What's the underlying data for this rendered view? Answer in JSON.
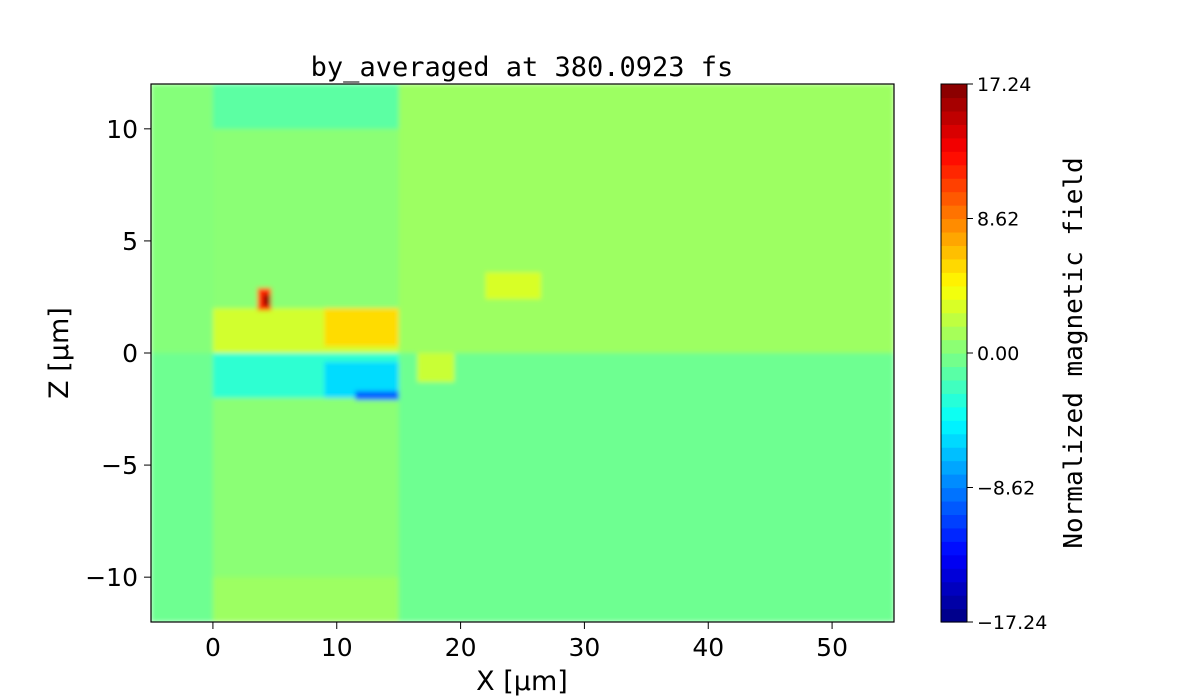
{
  "chart_data": {
    "type": "heatmap",
    "title": "by_averaged at 380.0923 fs",
    "xlabel": "X [μm]",
    "ylabel": "Z [μm]",
    "xlim": [
      -5,
      55
    ],
    "ylim": [
      -12,
      12
    ],
    "xticks": [
      0,
      10,
      20,
      30,
      40,
      50
    ],
    "yticks": [
      -10,
      -5,
      0,
      5,
      10
    ],
    "ytick_labels": [
      "−10",
      "−5",
      "0",
      "5",
      "10"
    ],
    "colormap": "jet",
    "colorbar": {
      "label": "Normalized magnetic field",
      "range": [
        -17.24,
        17.24
      ],
      "ticks": [
        17.24,
        8.62,
        0.0,
        -8.62,
        -17.24
      ],
      "tick_labels": [
        "17.24",
        "8.62",
        "0.00",
        "−8.62",
        "−17.24"
      ]
    },
    "regions": [
      {
        "x": [
          -5,
          55
        ],
        "z": [
          -12,
          12
        ],
        "value": -0.6
      },
      {
        "x": [
          15,
          55
        ],
        "z": [
          0,
          12
        ],
        "value": 1.0
      },
      {
        "x": [
          -5,
          0
        ],
        "z": [
          0,
          12
        ],
        "value": 0.2
      },
      {
        "x": [
          0,
          15
        ],
        "z": [
          2,
          10
        ],
        "value": 0.4
      },
      {
        "x": [
          0,
          15
        ],
        "z": [
          -10,
          -2
        ],
        "value": 0.4
      },
      {
        "x": [
          0,
          15
        ],
        "z": [
          10,
          12
        ],
        "value": -1.2
      },
      {
        "x": [
          0,
          15
        ],
        "z": [
          -12,
          -10
        ],
        "value": 1.0
      },
      {
        "x": [
          0,
          15
        ],
        "z": [
          0,
          2
        ],
        "value": 2.8
      },
      {
        "x": [
          9,
          15
        ],
        "z": [
          0.3,
          2
        ],
        "value": 5.5
      },
      {
        "x": [
          0,
          15
        ],
        "z": [
          -2,
          0
        ],
        "value": -2.8
      },
      {
        "x": [
          9,
          15
        ],
        "z": [
          -2,
          -0.4
        ],
        "value": -5.5
      },
      {
        "x": [
          11.5,
          15
        ],
        "z": [
          -2.1,
          -1.7
        ],
        "value": -9.5
      },
      {
        "x": [
          16.5,
          19.5
        ],
        "z": [
          -1.3,
          0
        ],
        "value": 2.5
      },
      {
        "x": [
          22,
          26.5
        ],
        "z": [
          2.4,
          3.6
        ],
        "value": 3.0
      },
      {
        "x": [
          3.6,
          4.7
        ],
        "z": [
          1.9,
          2.9
        ],
        "value": 11.5
      },
      {
        "x": [
          4.1,
          4.6
        ],
        "z": [
          2.1,
          2.6
        ],
        "value": 17.0
      }
    ]
  }
}
